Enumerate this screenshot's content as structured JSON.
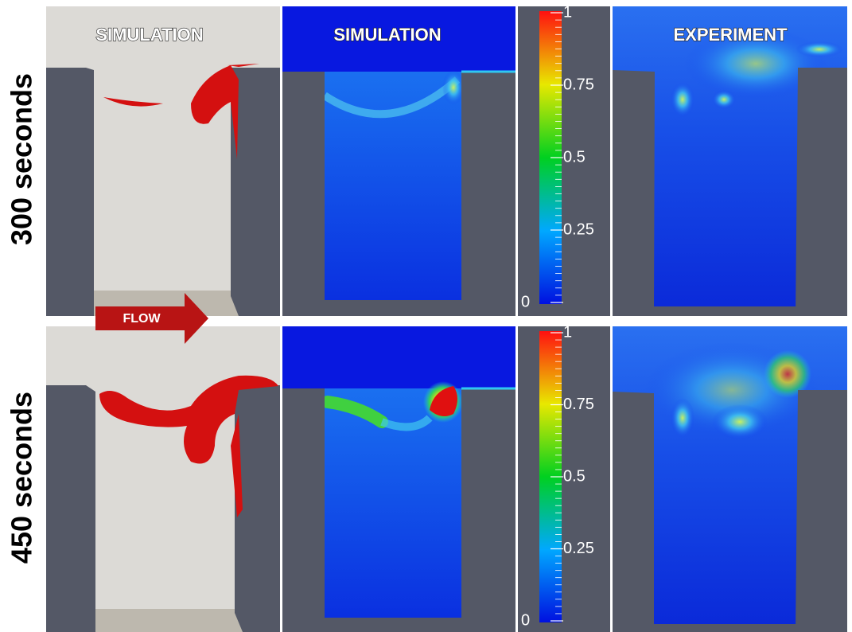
{
  "headers": [
    "SIMULATION",
    "SIMULATION",
    "EXPERIMENT"
  ],
  "flow_label": "FLOW",
  "rows": [
    {
      "label": "300 seconds",
      "colorbar_ticks": [
        1,
        0.75,
        0.5,
        0.25,
        0
      ]
    },
    {
      "label": "450 seconds",
      "colorbar_ticks": [
        1,
        0.75,
        0.5,
        0.25,
        0
      ]
    }
  ]
}
